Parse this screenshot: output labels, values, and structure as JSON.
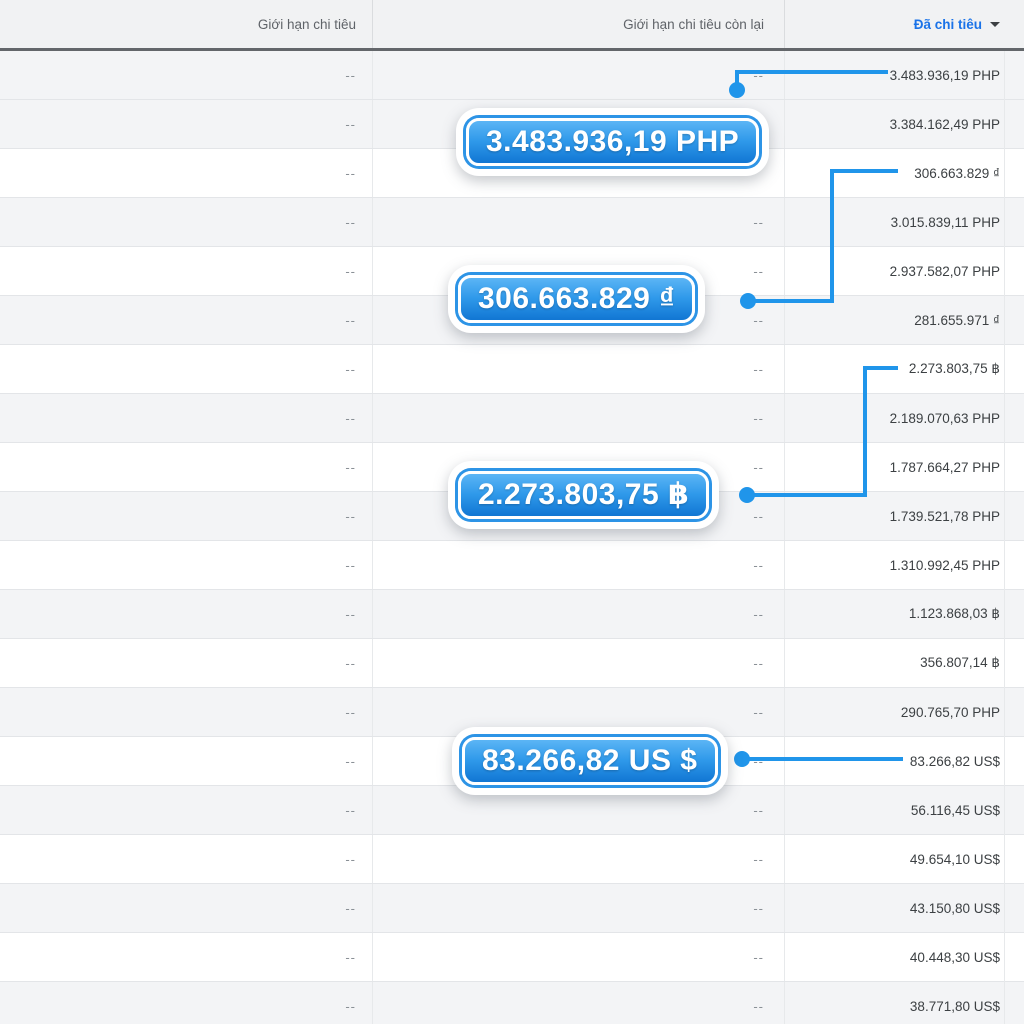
{
  "header": {
    "columns": [
      {
        "label": "Giới hạn chi tiêu"
      },
      {
        "label": "Giới hạn chi tiêu còn lại"
      },
      {
        "label": "Đã chi tiêu",
        "sorted": "desc"
      }
    ]
  },
  "table": {
    "rows": [
      {
        "limit": "--",
        "remaining": "--",
        "spent": "3.483.936,19 PHP",
        "shade": "gray"
      },
      {
        "limit": "--",
        "remaining": "",
        "spent": "3.384.162,49 PHP",
        "shade": "gray"
      },
      {
        "limit": "--",
        "remaining": "",
        "spent": "306.663.829 ₫",
        "shade": "white"
      },
      {
        "limit": "--",
        "remaining": "--",
        "spent": "3.015.839,11 PHP",
        "shade": "gray"
      },
      {
        "limit": "--",
        "remaining": "--",
        "spent": "2.937.582,07 PHP",
        "shade": "white"
      },
      {
        "limit": "--",
        "remaining": "--",
        "spent": "281.655.971 ₫",
        "shade": "gray"
      },
      {
        "limit": "--",
        "remaining": "--",
        "spent": "2.273.803,75 ฿",
        "shade": "white"
      },
      {
        "limit": "--",
        "remaining": "--",
        "spent": "2.189.070,63 PHP",
        "shade": "gray"
      },
      {
        "limit": "--",
        "remaining": "--",
        "spent": "1.787.664,27 PHP",
        "shade": "white"
      },
      {
        "limit": "--",
        "remaining": "--",
        "spent": "1.739.521,78 PHP",
        "shade": "gray"
      },
      {
        "limit": "--",
        "remaining": "--",
        "spent": "1.310.992,45 PHP",
        "shade": "white"
      },
      {
        "limit": "--",
        "remaining": "--",
        "spent": "1.123.868,03 ฿",
        "shade": "gray"
      },
      {
        "limit": "--",
        "remaining": "--",
        "spent": "356.807,14 ฿",
        "shade": "white"
      },
      {
        "limit": "--",
        "remaining": "--",
        "spent": "290.765,70 PHP",
        "shade": "gray"
      },
      {
        "limit": "--",
        "remaining": "--",
        "spent": "83.266,82 US$",
        "shade": "white"
      },
      {
        "limit": "--",
        "remaining": "--",
        "spent": "56.116,45 US$",
        "shade": "gray"
      },
      {
        "limit": "--",
        "remaining": "--",
        "spent": "49.654,10 US$",
        "shade": "white"
      },
      {
        "limit": "--",
        "remaining": "--",
        "spent": "43.150,80 US$",
        "shade": "gray"
      },
      {
        "limit": "--",
        "remaining": "--",
        "spent": "40.448,30 US$",
        "shade": "white"
      },
      {
        "limit": "--",
        "remaining": "--",
        "spent": "38.771,80 US$",
        "shade": "gray"
      }
    ]
  },
  "callouts": [
    {
      "label": "3.483.936,19 PHP"
    },
    {
      "label": "306.663.829 ₫"
    },
    {
      "label": "2.273.803,75 ฿"
    },
    {
      "label": "83.266,82 US $"
    }
  ],
  "colors": {
    "connector_blue": "#2095ea",
    "header_link_blue": "#1a73e8",
    "badge_gradient_top": "#5bb5f5",
    "badge_gradient_bottom": "#1176d3",
    "row_stripe_gray": "#f3f4f6",
    "value_text": "#3c4043"
  }
}
